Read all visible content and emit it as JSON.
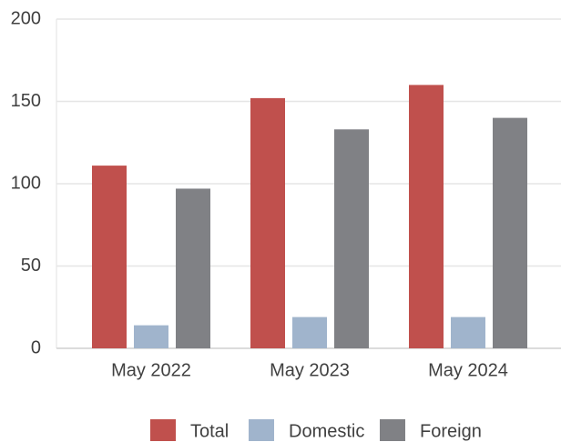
{
  "chart_data": {
    "type": "bar",
    "categories": [
      "May 2022",
      "May 2023",
      "May 2024"
    ],
    "series": [
      {
        "name": "Total",
        "color": "#c0504d",
        "values": [
          111,
          152,
          160
        ]
      },
      {
        "name": "Domestic",
        "color": "#a0b4cc",
        "values": [
          14,
          19,
          19
        ]
      },
      {
        "name": "Foreign",
        "color": "#808185",
        "values": [
          97,
          133,
          140
        ]
      }
    ],
    "ylim": [
      0,
      200
    ],
    "yticks": [
      0,
      50,
      100,
      150,
      200
    ],
    "grid": true,
    "legend": "bottom"
  }
}
